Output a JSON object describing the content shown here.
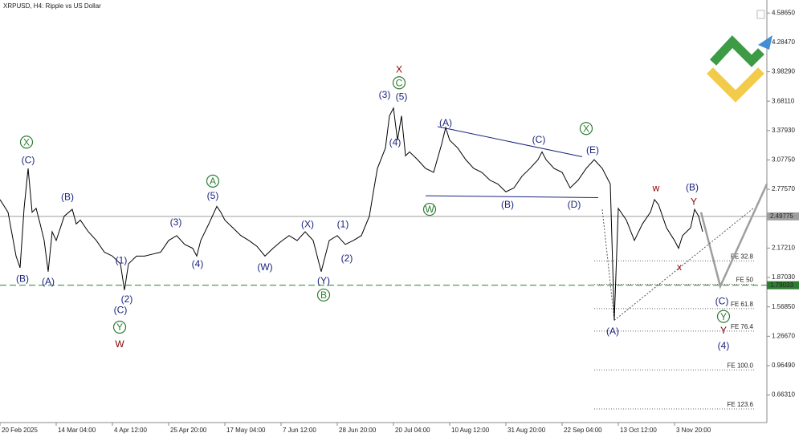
{
  "chart_data": {
    "type": "line",
    "title": "XRPUSD, H4:  Ripple vs US Dollar",
    "xlim": [
      0,
      191
    ],
    "ylim": [
      0.38,
      4.72
    ],
    "xticks": [
      {
        "value": 0,
        "label": "20 Feb 2025"
      },
      {
        "value": 14,
        "label": "14 Mar 04:00"
      },
      {
        "value": 28,
        "label": "4 Apr 12:00"
      },
      {
        "value": 42,
        "label": "25 Apr 20:00"
      },
      {
        "value": 56,
        "label": "17 May 04:00"
      },
      {
        "value": 70,
        "label": "7 Jun 12:00"
      },
      {
        "value": 84,
        "label": "28 Jun 20:00"
      },
      {
        "value": 98,
        "label": "20 Jul 04:00"
      },
      {
        "value": 112,
        "label": "10 Aug 12:00"
      },
      {
        "value": 126,
        "label": "31 Aug 20:00"
      },
      {
        "value": 140,
        "label": "22 Sep 04:00"
      },
      {
        "value": 154,
        "label": "13 Oct 12:00"
      },
      {
        "value": 168,
        "label": "3 Nov 20:00"
      }
    ],
    "yticks": [
      {
        "value": 4.5865,
        "label": "4.58650"
      },
      {
        "value": 4.2847,
        "label": "4.28470"
      },
      {
        "value": 3.9829,
        "label": "3.98290"
      },
      {
        "value": 3.6811,
        "label": "3.68110"
      },
      {
        "value": 3.3793,
        "label": "3.37930"
      },
      {
        "value": 3.0775,
        "label": "3.07750"
      },
      {
        "value": 2.7757,
        "label": "2.77570"
      },
      {
        "value": 2.1721,
        "label": "2.17210"
      },
      {
        "value": 1.8703,
        "label": "1.87030"
      },
      {
        "value": 1.5685,
        "label": "1.56850"
      },
      {
        "value": 1.2667,
        "label": "1.26670"
      },
      {
        "value": 0.9649,
        "label": "0.96490"
      },
      {
        "value": 0.6631,
        "label": "0.66310"
      }
    ],
    "series": [
      {
        "name": "XRPUSD",
        "color": "#000000",
        "x": [
          0,
          2,
          4,
          5,
          6,
          7,
          8,
          9,
          10,
          11,
          12,
          13,
          14,
          16,
          18,
          19,
          20,
          22,
          24,
          26,
          28,
          30,
          31,
          32,
          34,
          36,
          38,
          40,
          42,
          44,
          46,
          48,
          49,
          50,
          52,
          54,
          55,
          56,
          58,
          60,
          62,
          64,
          66,
          68,
          70,
          72,
          74,
          76,
          78,
          80,
          82,
          84,
          86,
          88,
          90,
          92,
          93,
          94,
          96,
          97,
          98,
          99,
          100,
          101,
          102,
          104,
          106,
          108,
          110,
          111,
          112,
          114,
          116,
          118,
          120,
          122,
          124,
          126,
          128,
          130,
          132,
          134,
          135,
          136,
          138,
          140,
          142,
          144,
          146,
          148,
          150,
          152,
          153,
          154,
          156,
          158,
          160,
          162,
          163,
          164,
          166,
          168,
          169,
          170,
          172,
          173,
          174,
          175
        ],
        "values": [
          2.67,
          2.54,
          2.09,
          1.97,
          2.58,
          2.99,
          2.54,
          2.58,
          2.42,
          2.25,
          1.93,
          2.34,
          2.25,
          2.5,
          2.57,
          2.42,
          2.46,
          2.34,
          2.25,
          2.13,
          2.09,
          2.01,
          1.74,
          2.01,
          2.09,
          2.09,
          2.11,
          2.13,
          2.25,
          2.3,
          2.21,
          2.17,
          2.09,
          2.25,
          2.42,
          2.6,
          2.54,
          2.46,
          2.38,
          2.3,
          2.25,
          2.19,
          2.09,
          2.17,
          2.24,
          2.3,
          2.25,
          2.34,
          2.25,
          1.93,
          2.25,
          2.3,
          2.21,
          2.25,
          2.3,
          2.5,
          2.75,
          2.99,
          3.2,
          3.53,
          3.61,
          3.28,
          3.53,
          3.12,
          3.16,
          3.08,
          2.99,
          2.95,
          3.24,
          3.41,
          3.28,
          3.2,
          3.08,
          2.99,
          2.95,
          2.87,
          2.83,
          2.75,
          2.79,
          2.91,
          2.99,
          3.08,
          3.16,
          3.08,
          2.99,
          2.95,
          2.79,
          2.87,
          2.99,
          3.08,
          2.99,
          2.83,
          1.43,
          2.58,
          2.46,
          2.25,
          2.42,
          2.54,
          2.67,
          2.62,
          2.38,
          2.25,
          2.17,
          2.3,
          2.38,
          2.57,
          2.5,
          2.34
        ]
      }
    ],
    "price_lines": [
      {
        "value": 2.49775,
        "label": "2.49775",
        "color": "#9e9e9e",
        "dash": false
      },
      {
        "value": 1.79033,
        "label": "1.79033",
        "color": "#2e7d32",
        "dash": true
      }
    ],
    "fib_levels": [
      {
        "label": "FE 32.8",
        "value": 2.04
      },
      {
        "label": "FE 50",
        "value": 1.8
      },
      {
        "label": "FE 61.8",
        "value": 1.55
      },
      {
        "label": "FE 76.4",
        "value": 1.32
      },
      {
        "label": "FE 100.0",
        "value": 0.92
      },
      {
        "label": "FE 123.6",
        "value": 0.52
      }
    ],
    "fib_range": [
      148,
      188
    ],
    "trendlines": [
      {
        "x": [
          109,
          145
        ],
        "y": [
          3.42,
          3.11
        ],
        "color": "#1a237e",
        "style": "solid"
      },
      {
        "x": [
          106,
          149
        ],
        "y": [
          2.71,
          2.69
        ],
        "color": "#1a237e",
        "style": "solid"
      },
      {
        "x": [
          174.6,
          179.4,
          191
        ],
        "y": [
          2.54,
          1.78,
          2.83
        ],
        "color": "#9e9e9e",
        "style": "thick"
      },
      {
        "x": [
          153,
          187.6
        ],
        "y": [
          1.43,
          2.58
        ],
        "color": "#555555",
        "style": "dotted"
      },
      {
        "x": [
          150,
          153
        ],
        "y": [
          2.57,
          1.43
        ],
        "color": "#555555",
        "style": "dotted"
      }
    ],
    "annotations": [
      {
        "text": "(C)",
        "x": 7,
        "y": 3.08,
        "color": "#1a237e"
      },
      {
        "text": "X",
        "x": 6.6,
        "y": 3.26,
        "color": "#2e7d32",
        "style": "circle"
      },
      {
        "text": "(B)",
        "x": 5.6,
        "y": 1.86,
        "color": "#1a237e"
      },
      {
        "text": "(A)",
        "x": 12,
        "y": 1.83,
        "color": "#1a237e"
      },
      {
        "text": "(B)",
        "x": 16.8,
        "y": 2.7,
        "color": "#1a237e"
      },
      {
        "text": "(1)",
        "x": 30.2,
        "y": 2.05,
        "color": "#1a237e"
      },
      {
        "text": "(2)",
        "x": 31.6,
        "y": 1.65,
        "color": "#1a237e"
      },
      {
        "text": "(C)",
        "x": 30,
        "y": 1.54,
        "color": "#1a237e"
      },
      {
        "text": "Y",
        "x": 29.8,
        "y": 1.36,
        "color": "#2e7d32",
        "style": "circle"
      },
      {
        "text": "W",
        "x": 29.8,
        "y": 1.19,
        "color": "#8b0000",
        "style": "big"
      },
      {
        "text": "(3)",
        "x": 43.8,
        "y": 2.44,
        "color": "#1a237e"
      },
      {
        "text": "A",
        "x": 53,
        "y": 2.86,
        "color": "#2e7d32",
        "style": "circle"
      },
      {
        "text": "(5)",
        "x": 53,
        "y": 2.71,
        "color": "#1a237e"
      },
      {
        "text": "(4)",
        "x": 49.2,
        "y": 2.01,
        "color": "#1a237e"
      },
      {
        "text": "(W)",
        "x": 66,
        "y": 1.98,
        "color": "#1a237e"
      },
      {
        "text": "(X)",
        "x": 76.6,
        "y": 2.42,
        "color": "#1a237e"
      },
      {
        "text": "(1)",
        "x": 85.4,
        "y": 2.42,
        "color": "#1a237e"
      },
      {
        "text": "(2)",
        "x": 86.4,
        "y": 2.07,
        "color": "#1a237e"
      },
      {
        "text": "(Y)",
        "x": 80.6,
        "y": 1.84,
        "color": "#1a237e"
      },
      {
        "text": "B",
        "x": 80.6,
        "y": 1.69,
        "color": "#2e7d32",
        "style": "circle"
      },
      {
        "text": "(3)",
        "x": 95.8,
        "y": 3.75,
        "color": "#1a237e"
      },
      {
        "text": "(5)",
        "x": 100,
        "y": 3.73,
        "color": "#1a237e"
      },
      {
        "text": "C",
        "x": 99.4,
        "y": 3.87,
        "color": "#2e7d32",
        "style": "circle"
      },
      {
        "text": "X",
        "x": 99.4,
        "y": 4.01,
        "color": "#8b0000",
        "style": "big"
      },
      {
        "text": "(4)",
        "x": 98.4,
        "y": 3.26,
        "color": "#1a237e"
      },
      {
        "text": "(A)",
        "x": 111,
        "y": 3.46,
        "color": "#1a237e"
      },
      {
        "text": "(C)",
        "x": 134.2,
        "y": 3.29,
        "color": "#1a237e"
      },
      {
        "text": "X",
        "x": 146,
        "y": 3.4,
        "color": "#2e7d32",
        "style": "circle"
      },
      {
        "text": "(E)",
        "x": 147.6,
        "y": 3.18,
        "color": "#1a237e"
      },
      {
        "text": "W",
        "x": 107,
        "y": 2.57,
        "color": "#2e7d32",
        "style": "circle"
      },
      {
        "text": "(B)",
        "x": 126.4,
        "y": 2.62,
        "color": "#1a237e"
      },
      {
        "text": "(D)",
        "x": 143,
        "y": 2.62,
        "color": "#1a237e"
      },
      {
        "text": "(A)",
        "x": 152.6,
        "y": 1.32,
        "color": "#1a237e"
      },
      {
        "text": "w",
        "x": 163.4,
        "y": 2.79,
        "color": "#8b0000"
      },
      {
        "text": "(B)",
        "x": 172.4,
        "y": 2.8,
        "color": "#1a237e"
      },
      {
        "text": "Y",
        "x": 172.8,
        "y": 2.65,
        "color": "#8b0000"
      },
      {
        "text": "x",
        "x": 169.2,
        "y": 1.98,
        "color": "#8b0000"
      },
      {
        "text": "(C)",
        "x": 179.8,
        "y": 1.63,
        "color": "#1a237e"
      },
      {
        "text": "Y",
        "x": 180.2,
        "y": 1.47,
        "color": "#2e7d32",
        "style": "circle"
      },
      {
        "text": "Y",
        "x": 180.2,
        "y": 1.33,
        "color": "#8b0000"
      },
      {
        "text": "(4)",
        "x": 180.2,
        "y": 1.17,
        "color": "#1a237e",
        "style": "large"
      }
    ]
  }
}
